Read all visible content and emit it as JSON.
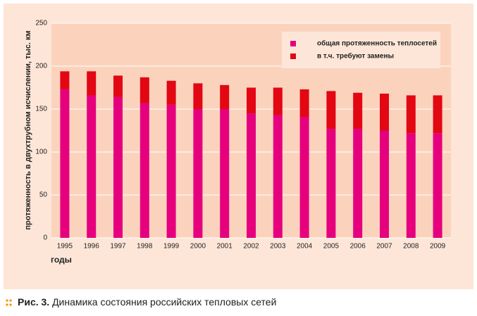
{
  "chart_data": {
    "type": "stacked_bar",
    "x_label": "годы",
    "y_label": "протяженность в двухтрубном исчислении, тыс. км",
    "caption_label": "Рис. 3.",
    "caption": "Динамика состояния российских тепловых сетей",
    "categories": [
      "1995",
      "1996",
      "1997",
      "1998",
      "1999",
      "2000",
      "2001",
      "2002",
      "2003",
      "2004",
      "2005",
      "2006",
      "2007",
      "2008",
      "2009"
    ],
    "series": [
      {
        "name": "общая протяженность теплосетей",
        "color": "#e6007e",
        "values": [
          173,
          166,
          164,
          157,
          155,
          150,
          150,
          145,
          143,
          141,
          127,
          127,
          125,
          122,
          122
        ]
      },
      {
        "name": "в т.ч. требуют замены",
        "color": "#e30613",
        "values": [
          21,
          28,
          25,
          30,
          28,
          30,
          28,
          30,
          32,
          32,
          44,
          42,
          43,
          44,
          44
        ]
      }
    ],
    "ylim": [
      0,
      250
    ],
    "yticks": [
      0,
      50,
      100,
      150,
      200,
      250
    ],
    "grid": true
  }
}
